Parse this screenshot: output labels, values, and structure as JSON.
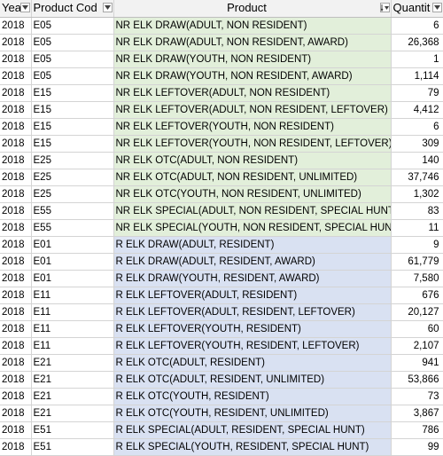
{
  "headers": {
    "year": "Yea",
    "code": "Product Cod",
    "product": "Product",
    "quantity": "Quantit"
  },
  "rows": [
    {
      "year": "2018",
      "code": "E05",
      "product": "NR ELK DRAW(ADULT, NON RESIDENT)",
      "qty": "6",
      "group": "nr"
    },
    {
      "year": "2018",
      "code": "E05",
      "product": "NR ELK DRAW(ADULT, NON RESIDENT, AWARD)",
      "qty": "26,368",
      "group": "nr"
    },
    {
      "year": "2018",
      "code": "E05",
      "product": "NR ELK DRAW(YOUTH, NON RESIDENT)",
      "qty": "1",
      "group": "nr"
    },
    {
      "year": "2018",
      "code": "E05",
      "product": "NR ELK DRAW(YOUTH, NON RESIDENT, AWARD)",
      "qty": "1,114",
      "group": "nr"
    },
    {
      "year": "2018",
      "code": "E15",
      "product": "NR ELK LEFTOVER(ADULT, NON RESIDENT)",
      "qty": "79",
      "group": "nr"
    },
    {
      "year": "2018",
      "code": "E15",
      "product": "NR ELK LEFTOVER(ADULT, NON RESIDENT, LEFTOVER)",
      "qty": "4,412",
      "group": "nr"
    },
    {
      "year": "2018",
      "code": "E15",
      "product": "NR ELK LEFTOVER(YOUTH, NON RESIDENT)",
      "qty": "6",
      "group": "nr"
    },
    {
      "year": "2018",
      "code": "E15",
      "product": "NR ELK LEFTOVER(YOUTH, NON RESIDENT, LEFTOVER)",
      "qty": "309",
      "group": "nr"
    },
    {
      "year": "2018",
      "code": "E25",
      "product": "NR ELK OTC(ADULT, NON RESIDENT)",
      "qty": "140",
      "group": "nr"
    },
    {
      "year": "2018",
      "code": "E25",
      "product": "NR ELK OTC(ADULT, NON RESIDENT, UNLIMITED)",
      "qty": "37,746",
      "group": "nr"
    },
    {
      "year": "2018",
      "code": "E25",
      "product": "NR ELK OTC(YOUTH, NON RESIDENT, UNLIMITED)",
      "qty": "1,302",
      "group": "nr"
    },
    {
      "year": "2018",
      "code": "E55",
      "product": "NR ELK SPECIAL(ADULT, NON RESIDENT, SPECIAL HUNT)",
      "qty": "83",
      "group": "nr"
    },
    {
      "year": "2018",
      "code": "E55",
      "product": "NR ELK SPECIAL(YOUTH, NON RESIDENT, SPECIAL HUNT)",
      "qty": "11",
      "group": "nr"
    },
    {
      "year": "2018",
      "code": "E01",
      "product": "R ELK DRAW(ADULT, RESIDENT)",
      "qty": "9",
      "group": "r"
    },
    {
      "year": "2018",
      "code": "E01",
      "product": "R ELK DRAW(ADULT, RESIDENT, AWARD)",
      "qty": "61,779",
      "group": "r"
    },
    {
      "year": "2018",
      "code": "E01",
      "product": "R ELK DRAW(YOUTH, RESIDENT, AWARD)",
      "qty": "7,580",
      "group": "r"
    },
    {
      "year": "2018",
      "code": "E11",
      "product": "R ELK LEFTOVER(ADULT, RESIDENT)",
      "qty": "676",
      "group": "r"
    },
    {
      "year": "2018",
      "code": "E11",
      "product": "R ELK LEFTOVER(ADULT, RESIDENT, LEFTOVER)",
      "qty": "20,127",
      "group": "r"
    },
    {
      "year": "2018",
      "code": "E11",
      "product": "R ELK LEFTOVER(YOUTH, RESIDENT)",
      "qty": "60",
      "group": "r"
    },
    {
      "year": "2018",
      "code": "E11",
      "product": "R ELK LEFTOVER(YOUTH, RESIDENT, LEFTOVER)",
      "qty": "2,107",
      "group": "r"
    },
    {
      "year": "2018",
      "code": "E21",
      "product": "R ELK OTC(ADULT, RESIDENT)",
      "qty": "941",
      "group": "r"
    },
    {
      "year": "2018",
      "code": "E21",
      "product": "R ELK OTC(ADULT, RESIDENT, UNLIMITED)",
      "qty": "53,866",
      "group": "r"
    },
    {
      "year": "2018",
      "code": "E21",
      "product": "R ELK OTC(YOUTH, RESIDENT)",
      "qty": "73",
      "group": "r"
    },
    {
      "year": "2018",
      "code": "E21",
      "product": "R ELK OTC(YOUTH, RESIDENT, UNLIMITED)",
      "qty": "3,867",
      "group": "r"
    },
    {
      "year": "2018",
      "code": "E51",
      "product": "R ELK SPECIAL(ADULT, RESIDENT, SPECIAL HUNT)",
      "qty": "786",
      "group": "r"
    },
    {
      "year": "2018",
      "code": "E51",
      "product": "R ELK SPECIAL(YOUTH, RESIDENT, SPECIAL HUNT)",
      "qty": "99",
      "group": "r"
    }
  ],
  "colors": {
    "nr_fill": "#e2efda",
    "r_fill": "#d9e1f2",
    "gridline": "#d4d4d4",
    "header_bg": "#f2f2f2"
  },
  "icons": {
    "filter": "filter-dropdown-icon",
    "sorted_filter": "sort-descending-filter-icon"
  }
}
